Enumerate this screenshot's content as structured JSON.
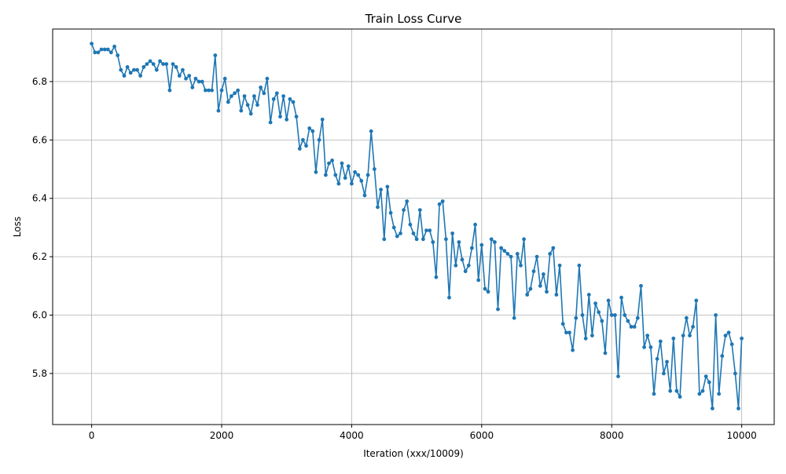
{
  "chart_data": {
    "type": "line",
    "title": "Train Loss Curve",
    "xlabel": "Iteration (xxx/10009)",
    "ylabel": "Loss",
    "xlim": [
      -600,
      10500
    ],
    "ylim": [
      5.625,
      6.98
    ],
    "xticks": [
      0,
      2000,
      4000,
      6000,
      8000,
      10000
    ],
    "yticks": [
      5.8,
      6.0,
      6.2,
      6.4,
      6.6,
      6.8
    ],
    "xtick_labels": [
      "0",
      "2000",
      "4000",
      "6000",
      "8000",
      "10000"
    ],
    "ytick_labels": [
      "5.8",
      "6.0",
      "6.2",
      "6.4",
      "6.6",
      "6.8"
    ],
    "grid": true,
    "color": "#1f77b4",
    "series": [
      {
        "x_start": 0,
        "x_step": 50,
        "values": [
          6.93,
          6.9,
          6.9,
          6.91,
          6.91,
          6.91,
          6.9,
          6.92,
          6.89,
          6.84,
          6.82,
          6.85,
          6.83,
          6.84,
          6.84,
          6.82,
          6.85,
          6.86,
          6.87,
          6.86,
          6.84,
          6.87,
          6.86,
          6.86,
          6.77,
          6.86,
          6.85,
          6.82,
          6.84,
          6.81,
          6.82,
          6.78,
          6.81,
          6.8,
          6.8,
          6.77,
          6.77,
          6.77,
          6.89,
          6.7,
          6.77,
          6.81,
          6.73,
          6.75,
          6.76,
          6.77,
          6.7,
          6.75,
          6.72,
          6.69,
          6.75,
          6.72,
          6.78,
          6.76,
          6.81,
          6.66,
          6.74,
          6.76,
          6.68,
          6.75,
          6.67,
          6.74,
          6.73,
          6.68,
          6.57,
          6.6,
          6.58,
          6.64,
          6.63,
          6.49,
          6.6,
          6.67,
          6.48,
          6.52,
          6.53,
          6.48,
          6.45,
          6.52,
          6.47,
          6.51,
          6.45,
          6.49,
          6.48,
          6.46,
          6.41,
          6.48,
          6.63,
          6.5,
          6.37,
          6.43,
          6.26,
          6.44,
          6.35,
          6.3,
          6.27,
          6.28,
          6.36,
          6.39,
          6.31,
          6.28,
          6.26,
          6.36,
          6.26,
          6.29,
          6.29,
          6.25,
          6.13,
          6.38,
          6.39,
          6.26,
          6.06,
          6.28,
          6.17,
          6.25,
          6.19,
          6.15,
          6.17,
          6.23,
          6.31,
          6.12,
          6.24,
          6.09,
          6.08,
          6.26,
          6.25,
          6.02,
          6.23,
          6.22,
          6.21,
          6.2,
          5.99,
          6.21,
          6.17,
          6.26,
          6.07,
          6.09,
          6.15,
          6.2,
          6.1,
          6.14,
          6.08,
          6.21,
          6.23,
          6.07,
          6.17,
          5.97,
          5.94,
          5.94,
          5.88,
          5.99,
          6.17,
          6.0,
          5.92,
          6.07,
          5.93,
          6.04,
          6.01,
          5.98,
          5.87,
          6.05,
          6.0,
          6.0,
          5.79,
          6.06,
          6.0,
          5.98,
          5.96,
          5.96,
          5.99,
          6.1,
          5.89,
          5.93,
          5.89,
          5.73,
          5.85,
          5.91,
          5.8,
          5.84,
          5.74,
          5.92,
          5.74,
          5.72,
          5.93,
          5.99,
          5.93,
          5.96,
          6.05,
          5.73,
          5.74,
          5.79,
          5.77,
          5.68,
          6.0,
          5.73,
          5.86,
          5.93,
          5.94,
          5.9,
          5.8,
          5.68,
          5.92
        ]
      }
    ]
  }
}
